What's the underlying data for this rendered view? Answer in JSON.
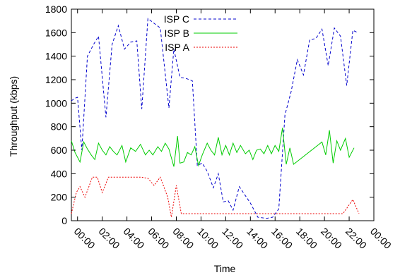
{
  "chart_data": {
    "type": "line",
    "xlabel": "Time",
    "ylabel": "Throughput (kbps)",
    "ylim": [
      0,
      1800
    ],
    "xlim": [
      -0.5,
      24
    ],
    "y_ticks": [
      0,
      200,
      400,
      600,
      800,
      1000,
      1200,
      1400,
      1600,
      1800
    ],
    "x_ticks": [
      {
        "v": 0,
        "label": "00:00"
      },
      {
        "v": 2,
        "label": "02:00"
      },
      {
        "v": 4,
        "label": "04:00"
      },
      {
        "v": 6,
        "label": "06:00"
      },
      {
        "v": 8,
        "label": "08:00"
      },
      {
        "v": 10,
        "label": "10:00"
      },
      {
        "v": 12,
        "label": "12:00"
      },
      {
        "v": 14,
        "label": "14:00"
      },
      {
        "v": 16,
        "label": "16:00"
      },
      {
        "v": 18,
        "label": "18:00"
      },
      {
        "v": 20,
        "label": "20:00"
      },
      {
        "v": 22,
        "label": "22:00"
      },
      {
        "v": 24,
        "label": "00:00"
      }
    ],
    "grid": false,
    "legend_position": "top-center",
    "series": [
      {
        "name": "ISP C",
        "color": "#0000cc",
        "dash": "dashed",
        "points": [
          [
            -0.5,
            1020
          ],
          [
            -0.25,
            1040
          ],
          [
            0,
            1050
          ],
          [
            0.35,
            600
          ],
          [
            0.8,
            1400
          ],
          [
            1.3,
            1500
          ],
          [
            1.7,
            1570
          ],
          [
            2.3,
            880
          ],
          [
            2.8,
            1500
          ],
          [
            3.3,
            1660
          ],
          [
            3.8,
            1460
          ],
          [
            4.3,
            1520
          ],
          [
            4.8,
            1530
          ],
          [
            5.2,
            950
          ],
          [
            5.7,
            1720
          ],
          [
            6.2,
            1680
          ],
          [
            6.7,
            1640
          ],
          [
            7.4,
            960
          ],
          [
            7.8,
            1460
          ],
          [
            8.3,
            1220
          ],
          [
            8.8,
            1210
          ],
          [
            9.3,
            1190
          ],
          [
            9.7,
            470
          ],
          [
            10.1,
            490
          ],
          [
            10.5,
            420
          ],
          [
            11.0,
            280
          ],
          [
            11.4,
            400
          ],
          [
            11.8,
            160
          ],
          [
            12.2,
            170
          ],
          [
            12.6,
            90
          ],
          [
            13.1,
            290
          ],
          [
            14.0,
            150
          ],
          [
            14.6,
            30
          ],
          [
            15.3,
            20
          ],
          [
            15.8,
            30
          ],
          [
            16.3,
            100
          ],
          [
            16.8,
            900
          ],
          [
            17.3,
            1100
          ],
          [
            17.8,
            1370
          ],
          [
            18.3,
            1240
          ],
          [
            18.8,
            1540
          ],
          [
            19.3,
            1550
          ],
          [
            19.8,
            1630
          ],
          [
            20.3,
            1320
          ],
          [
            20.8,
            1640
          ],
          [
            21.3,
            1570
          ],
          [
            21.8,
            1150
          ],
          [
            22.3,
            1620
          ],
          [
            22.7,
            1600
          ]
        ]
      },
      {
        "name": "ISP B",
        "color": "#00cc00",
        "dash": "solid",
        "points": [
          [
            -0.5,
            680
          ],
          [
            -0.2,
            580
          ],
          [
            0.2,
            500
          ],
          [
            0.5,
            670
          ],
          [
            0.8,
            610
          ],
          [
            1.1,
            560
          ],
          [
            1.4,
            520
          ],
          [
            1.7,
            660
          ],
          [
            2.0,
            600
          ],
          [
            2.3,
            560
          ],
          [
            2.6,
            630
          ],
          [
            2.9,
            590
          ],
          [
            3.2,
            560
          ],
          [
            3.6,
            640
          ],
          [
            3.9,
            500
          ],
          [
            4.3,
            620
          ],
          [
            4.7,
            590
          ],
          [
            5.1,
            650
          ],
          [
            5.5,
            560
          ],
          [
            5.8,
            600
          ],
          [
            6.1,
            560
          ],
          [
            6.5,
            630
          ],
          [
            6.8,
            590
          ],
          [
            7.1,
            660
          ],
          [
            7.4,
            610
          ],
          [
            7.8,
            460
          ],
          [
            8.1,
            720
          ],
          [
            8.3,
            490
          ],
          [
            8.6,
            500
          ],
          [
            8.9,
            580
          ],
          [
            9.2,
            560
          ],
          [
            9.5,
            630
          ],
          [
            9.8,
            470
          ],
          [
            10.1,
            560
          ],
          [
            10.5,
            660
          ],
          [
            10.8,
            600
          ],
          [
            11.1,
            560
          ],
          [
            11.4,
            710
          ],
          [
            11.7,
            560
          ],
          [
            12.0,
            640
          ],
          [
            12.3,
            560
          ],
          [
            12.6,
            660
          ],
          [
            12.9,
            580
          ],
          [
            13.2,
            640
          ],
          [
            13.6,
            570
          ],
          [
            13.9,
            600
          ],
          [
            14.2,
            520
          ],
          [
            14.5,
            600
          ],
          [
            14.8,
            610
          ],
          [
            15.1,
            570
          ],
          [
            15.4,
            640
          ],
          [
            15.7,
            570
          ],
          [
            16.0,
            640
          ],
          [
            16.3,
            590
          ],
          [
            16.6,
            790
          ],
          [
            16.9,
            480
          ],
          [
            17.2,
            620
          ],
          [
            17.5,
            480
          ],
          [
            19.8,
            670
          ],
          [
            20.1,
            560
          ],
          [
            20.4,
            770
          ],
          [
            20.7,
            490
          ],
          [
            21.0,
            680
          ],
          [
            21.3,
            600
          ],
          [
            21.7,
            700
          ],
          [
            22.0,
            540
          ],
          [
            22.4,
            620
          ]
        ]
      },
      {
        "name": "ISP A",
        "color": "#ee0000",
        "dash": "dotted",
        "points": [
          [
            -0.5,
            60
          ],
          [
            -0.1,
            240
          ],
          [
            0.2,
            290
          ],
          [
            0.6,
            200
          ],
          [
            1.2,
            370
          ],
          [
            1.6,
            370
          ],
          [
            2.0,
            240
          ],
          [
            2.5,
            370
          ],
          [
            3.2,
            370
          ],
          [
            4.0,
            370
          ],
          [
            4.6,
            370
          ],
          [
            5.2,
            370
          ],
          [
            5.7,
            360
          ],
          [
            6.2,
            300
          ],
          [
            6.7,
            370
          ],
          [
            7.3,
            200
          ],
          [
            7.6,
            30
          ],
          [
            8.0,
            300
          ],
          [
            8.4,
            60
          ],
          [
            10.0,
            60
          ],
          [
            12.0,
            60
          ],
          [
            14.0,
            60
          ],
          [
            16.0,
            60
          ],
          [
            18.0,
            60
          ],
          [
            20.0,
            60
          ],
          [
            21.5,
            60
          ],
          [
            22.3,
            180
          ],
          [
            22.8,
            60
          ]
        ]
      }
    ]
  }
}
